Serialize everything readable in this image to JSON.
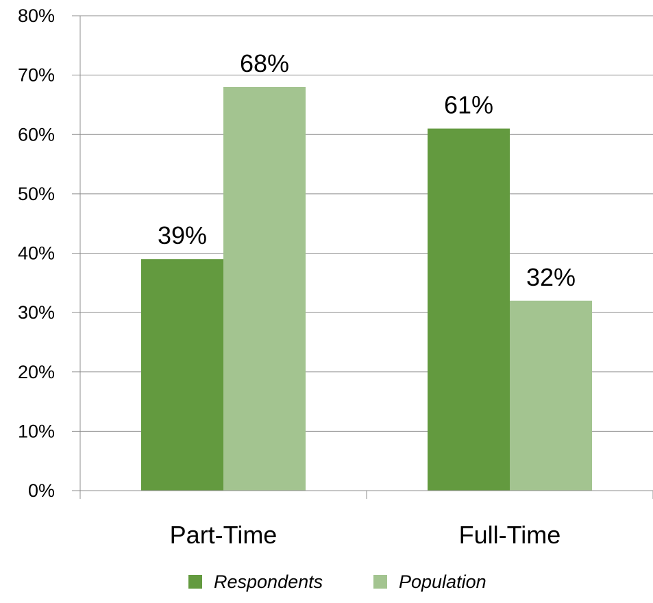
{
  "chart_data": {
    "type": "bar",
    "title": "",
    "xlabel": "",
    "ylabel": "",
    "categories": [
      "Part-Time",
      "Full-Time"
    ],
    "series": [
      {
        "name": "Respondents",
        "values": [
          39,
          61
        ],
        "labels": [
          "39%",
          "61%"
        ],
        "color": "#639A3F"
      },
      {
        "name": "Population",
        "values": [
          68,
          32
        ],
        "labels": [
          "68%",
          "32%"
        ],
        "color": "#A3C490"
      }
    ],
    "ylim": [
      0,
      80
    ],
    "yticks": [
      0,
      10,
      20,
      30,
      40,
      50,
      60,
      70,
      80
    ],
    "ytick_labels": [
      "0%",
      "10%",
      "20%",
      "30%",
      "40%",
      "50%",
      "60%",
      "70%",
      "80%"
    ],
    "grid": true,
    "gridline_color": "#8C8C8C",
    "legend_position": "bottom"
  }
}
